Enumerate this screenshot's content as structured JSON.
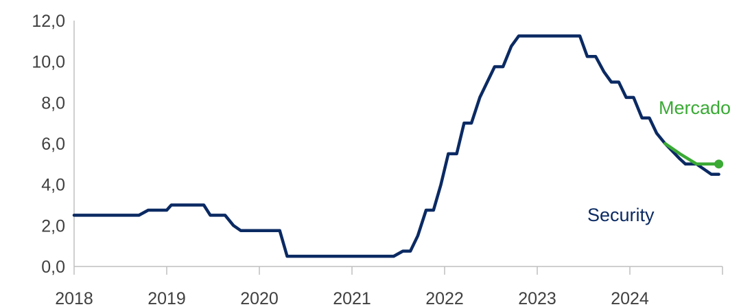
{
  "chart_data": {
    "type": "line",
    "title": "",
    "xlabel": "",
    "ylabel": "",
    "ylim": [
      0,
      12
    ],
    "xlim": [
      2018,
      2025
    ],
    "y_ticks": [
      "0,0",
      "2,0",
      "4,0",
      "6,0",
      "8,0",
      "10,0",
      "12,0"
    ],
    "y_tick_values": [
      0,
      2,
      4,
      6,
      8,
      10,
      12
    ],
    "x_ticks": [
      "2018",
      "2019",
      "2020",
      "2021",
      "2022",
      "2023",
      "2024"
    ],
    "x_tick_values": [
      2018,
      2019,
      2020,
      2021,
      2022,
      2023,
      2024
    ],
    "grid": false,
    "legend": "none (series labeled directly on chart)",
    "series": [
      {
        "name": "Security",
        "color": "#0B2A63",
        "step": true,
        "points": [
          [
            2018.0,
            2.5
          ],
          [
            2018.7,
            2.5
          ],
          [
            2018.8,
            2.75
          ],
          [
            2019.0,
            2.75
          ],
          [
            2019.05,
            3.0
          ],
          [
            2019.4,
            3.0
          ],
          [
            2019.47,
            2.5
          ],
          [
            2019.63,
            2.5
          ],
          [
            2019.72,
            2.0
          ],
          [
            2019.8,
            1.75
          ],
          [
            2020.22,
            1.75
          ],
          [
            2020.3,
            0.5
          ],
          [
            2021.45,
            0.5
          ],
          [
            2021.55,
            0.75
          ],
          [
            2021.63,
            0.75
          ],
          [
            2021.71,
            1.5
          ],
          [
            2021.8,
            2.75
          ],
          [
            2021.88,
            2.75
          ],
          [
            2021.96,
            4.0
          ],
          [
            2022.04,
            5.5
          ],
          [
            2022.13,
            5.5
          ],
          [
            2022.21,
            7.0
          ],
          [
            2022.29,
            7.0
          ],
          [
            2022.38,
            8.25
          ],
          [
            2022.54,
            9.75
          ],
          [
            2022.63,
            9.75
          ],
          [
            2022.72,
            10.75
          ],
          [
            2022.8,
            11.25
          ],
          [
            2023.46,
            11.25
          ],
          [
            2023.54,
            10.25
          ],
          [
            2023.63,
            10.25
          ],
          [
            2023.72,
            9.5
          ],
          [
            2023.8,
            9.0
          ],
          [
            2023.88,
            9.0
          ],
          [
            2023.96,
            8.25
          ],
          [
            2024.04,
            8.25
          ],
          [
            2024.13,
            7.25
          ],
          [
            2024.21,
            7.25
          ],
          [
            2024.29,
            6.5
          ],
          [
            2024.38,
            6.0
          ],
          [
            2024.54,
            5.25
          ],
          [
            2024.6,
            5.0
          ],
          [
            2024.72,
            5.0
          ],
          [
            2024.8,
            4.75
          ],
          [
            2024.88,
            4.5
          ],
          [
            2024.96,
            4.5
          ]
        ]
      },
      {
        "name": "Mercado",
        "color": "#3AAA35",
        "step": false,
        "points": [
          [
            2024.38,
            6.0
          ],
          [
            2024.54,
            5.5
          ],
          [
            2024.72,
            5.0
          ],
          [
            2024.96,
            5.0
          ]
        ],
        "end_marker": true
      }
    ],
    "annotations": [
      {
        "text": "Mercado",
        "series": "Mercado"
      },
      {
        "text": "Security",
        "series": "Security"
      }
    ]
  }
}
